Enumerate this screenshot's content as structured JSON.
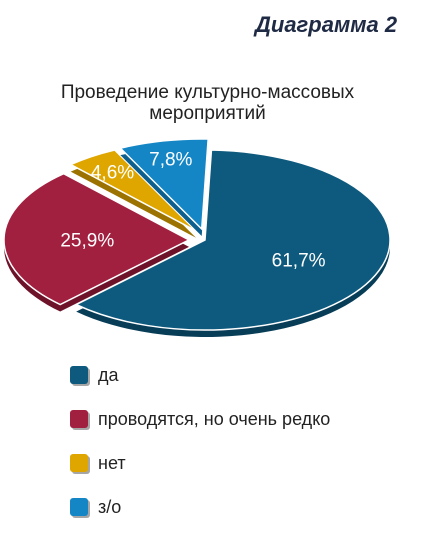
{
  "figure_label": "Диаграмма 2",
  "chart_data": {
    "type": "pie",
    "title": "Проведение культурно-массовых мероприятий",
    "slices": [
      {
        "label": "да",
        "value": 61.7,
        "display": "61,7%",
        "color": "#0e5a7e",
        "shade": "#083d57",
        "exploded": false
      },
      {
        "label": "проводятся, но очень редко",
        "value": 25.9,
        "display": "25,9%",
        "color": "#a2203f",
        "shade": "#6e1229",
        "exploded": true
      },
      {
        "label": "нет",
        "value": 4.6,
        "display": "4,6%",
        "color": "#dfa600",
        "shade": "#9c7300",
        "exploded": true
      },
      {
        "label": "з/о",
        "value": 7.8,
        "display": "7,8%",
        "color": "#1486c5",
        "shade": "#0d5f8d",
        "exploded": true
      }
    ],
    "legend_position": "bottom"
  }
}
